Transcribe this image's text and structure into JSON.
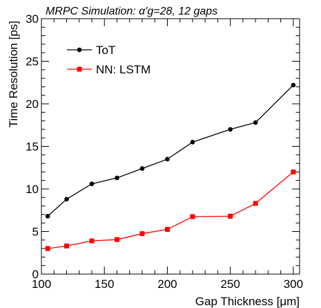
{
  "chart_data": {
    "type": "line",
    "title": "MRPC Simulation: α'g=28, 12 gaps",
    "xlabel": "Gap Thickness [μm]",
    "ylabel": "Time Resolution [ps]",
    "xlim": [
      100,
      305
    ],
    "ylim": [
      0,
      30
    ],
    "x_ticks": [
      100,
      150,
      200,
      250,
      300
    ],
    "y_ticks": [
      0,
      5,
      10,
      15,
      20,
      25,
      30
    ],
    "grid": false,
    "legend_position": "top-left",
    "x": [
      105,
      120,
      140,
      160,
      180,
      200,
      220,
      250,
      270,
      300
    ],
    "series": [
      {
        "name": "ToT",
        "color": "#000000",
        "marker": "circle",
        "values": [
          6.8,
          8.8,
          10.6,
          11.3,
          12.4,
          13.5,
          15.5,
          17.0,
          17.8,
          22.2
        ]
      },
      {
        "name": "NN: LSTM",
        "color": "#ff0000",
        "marker": "square",
        "values": [
          3.0,
          3.3,
          3.9,
          4.05,
          4.75,
          5.25,
          6.75,
          6.8,
          8.3,
          12.0
        ]
      }
    ]
  }
}
